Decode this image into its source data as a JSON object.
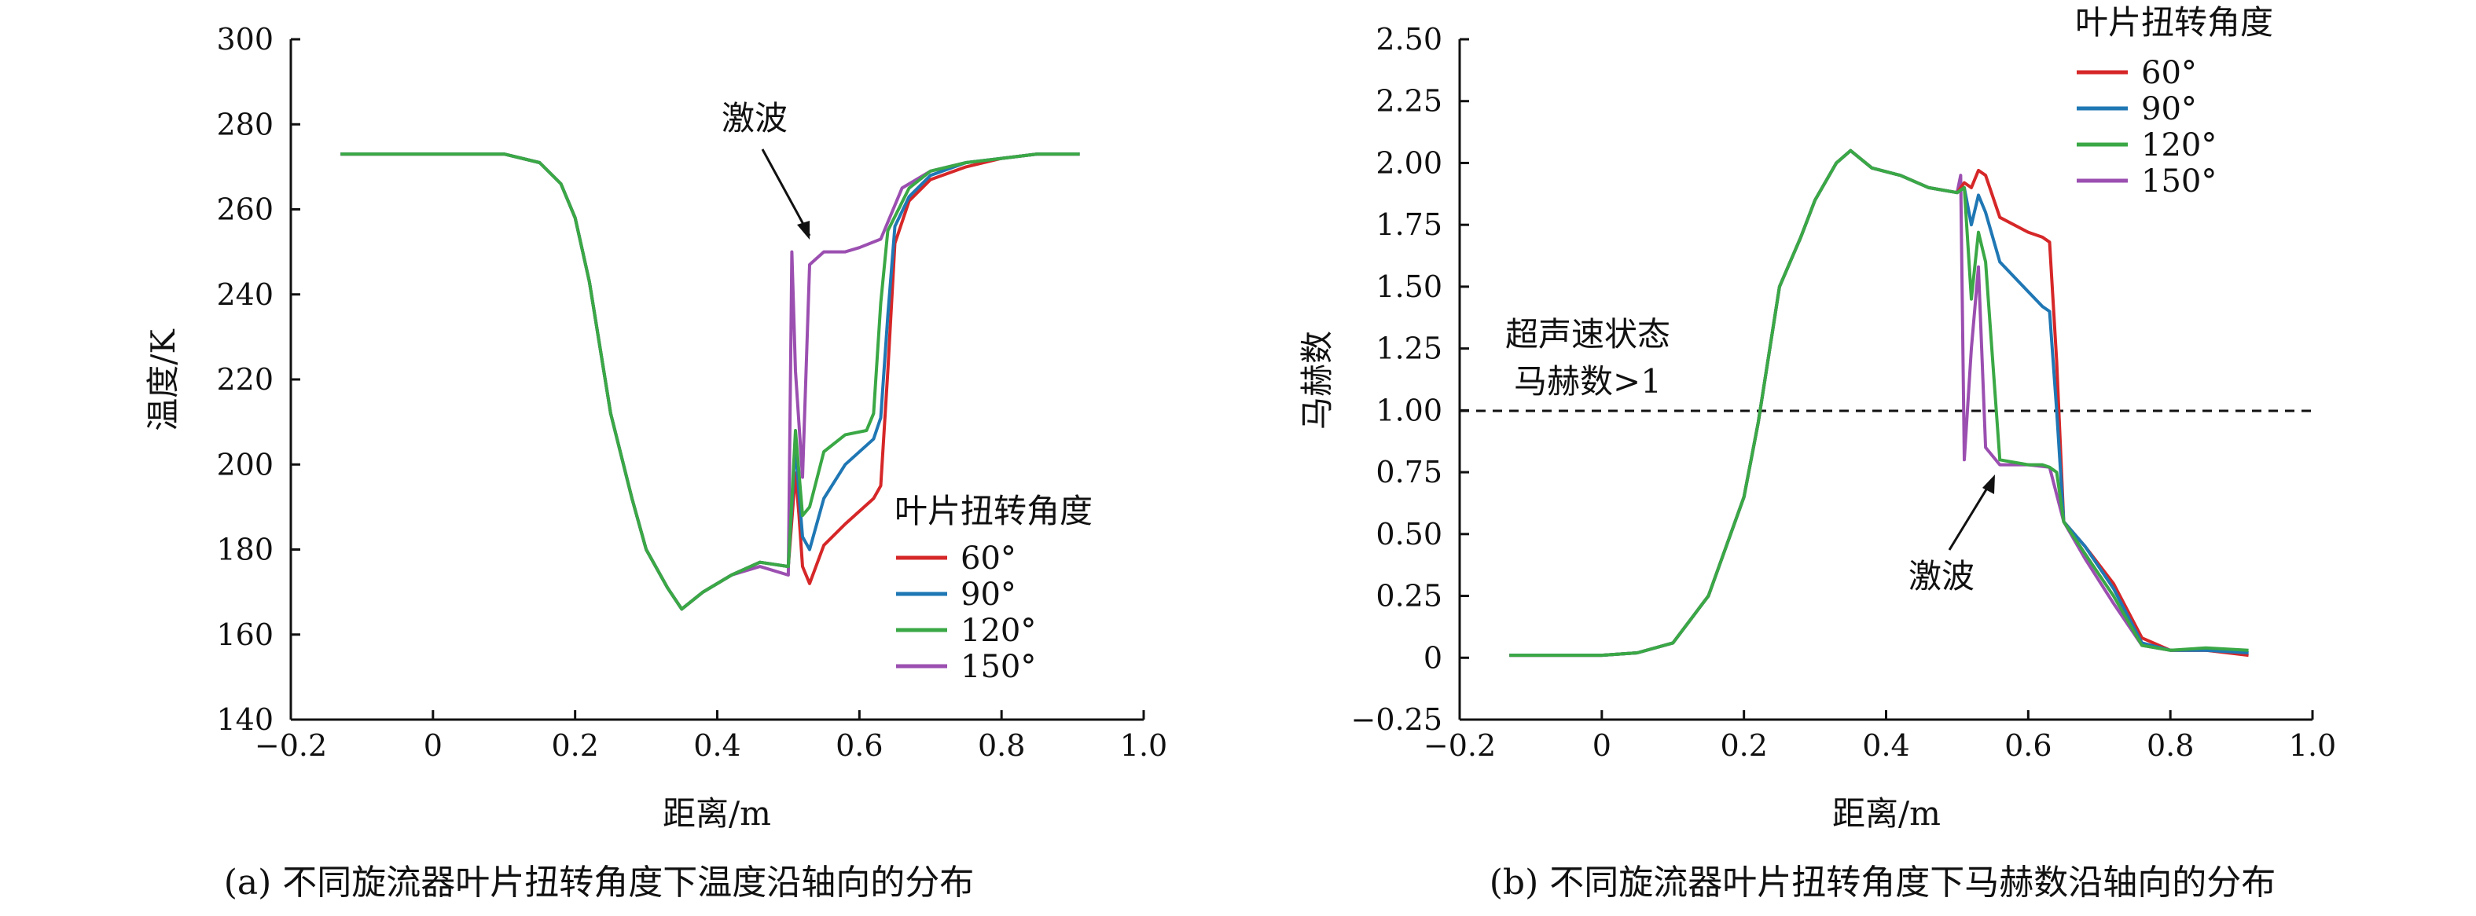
{
  "chart_data": [
    {
      "type": "line",
      "caption": "(a) 不同旋流器叶片扭转角度下温度沿轴向的分布",
      "xlabel": "距离/m",
      "ylabel": "温度/K",
      "xlim": [
        -0.2,
        1.0
      ],
      "ylim": [
        140,
        300
      ],
      "xticks": [
        -0.2,
        0,
        0.2,
        0.4,
        0.6,
        0.8,
        1.0
      ],
      "xtick_labels": [
        "−0.2",
        "0",
        "0.2",
        "0.4",
        "0.6",
        "0.8",
        "1.0"
      ],
      "yticks": [
        140,
        160,
        180,
        200,
        220,
        240,
        260,
        280,
        300
      ],
      "ytick_labels": [
        "140",
        "160",
        "180",
        "200",
        "220",
        "240",
        "260",
        "280",
        "300"
      ],
      "grid": false,
      "legend": {
        "title": "叶片扭转角度",
        "position": "right"
      },
      "annotations": [
        {
          "text": "激波",
          "x": 0.505,
          "y": 250
        }
      ],
      "series": [
        {
          "name": "60°",
          "color": "#d62728",
          "x": [
            -0.13,
            0.1,
            0.15,
            0.18,
            0.2,
            0.22,
            0.25,
            0.28,
            0.3,
            0.33,
            0.35,
            0.38,
            0.42,
            0.46,
            0.5,
            0.51,
            0.515,
            0.52,
            0.53,
            0.55,
            0.58,
            0.62,
            0.63,
            0.64,
            0.65,
            0.67,
            0.7,
            0.75,
            0.8,
            0.85,
            0.91
          ],
          "y": [
            273,
            273,
            271,
            266,
            258,
            243,
            212,
            192,
            180,
            171,
            166,
            170,
            174,
            177,
            176,
            198,
            188,
            176,
            172,
            181,
            186,
            192,
            195,
            222,
            252,
            262,
            267,
            270,
            272,
            273,
            273
          ]
        },
        {
          "name": "90°",
          "color": "#1f77b4",
          "x": [
            -0.13,
            0.1,
            0.15,
            0.18,
            0.2,
            0.22,
            0.25,
            0.28,
            0.3,
            0.33,
            0.35,
            0.38,
            0.42,
            0.46,
            0.5,
            0.51,
            0.515,
            0.52,
            0.53,
            0.55,
            0.58,
            0.62,
            0.63,
            0.64,
            0.65,
            0.67,
            0.7,
            0.75,
            0.8,
            0.85,
            0.91
          ],
          "y": [
            273,
            273,
            271,
            266,
            258,
            243,
            212,
            192,
            180,
            171,
            166,
            170,
            174,
            177,
            176,
            205,
            193,
            183,
            180,
            192,
            200,
            206,
            211,
            235,
            256,
            263,
            268,
            271,
            272,
            273,
            273
          ]
        },
        {
          "name": "120°",
          "color": "#3aa845",
          "x": [
            -0.13,
            0.1,
            0.15,
            0.18,
            0.2,
            0.22,
            0.25,
            0.28,
            0.3,
            0.33,
            0.35,
            0.38,
            0.42,
            0.46,
            0.5,
            0.51,
            0.515,
            0.52,
            0.53,
            0.55,
            0.58,
            0.61,
            0.62,
            0.63,
            0.64,
            0.67,
            0.7,
            0.75,
            0.8,
            0.85,
            0.91
          ],
          "y": [
            273,
            273,
            271,
            266,
            258,
            243,
            212,
            192,
            180,
            171,
            166,
            170,
            174,
            177,
            176,
            208,
            198,
            188,
            190,
            203,
            207,
            208,
            212,
            238,
            255,
            265,
            269,
            271,
            272,
            273,
            273
          ]
        },
        {
          "name": "150°",
          "color": "#9b4fb0",
          "x": [
            -0.13,
            0.1,
            0.15,
            0.18,
            0.2,
            0.22,
            0.25,
            0.28,
            0.3,
            0.33,
            0.35,
            0.38,
            0.42,
            0.46,
            0.5,
            0.505,
            0.51,
            0.52,
            0.53,
            0.55,
            0.58,
            0.6,
            0.63,
            0.66,
            0.7,
            0.75,
            0.8,
            0.85,
            0.91
          ],
          "y": [
            273,
            273,
            271,
            266,
            258,
            243,
            212,
            192,
            180,
            171,
            166,
            170,
            174,
            176,
            174,
            250,
            222,
            197,
            247,
            250,
            250,
            251,
            253,
            265,
            269,
            271,
            272,
            273,
            273
          ]
        }
      ]
    },
    {
      "type": "line",
      "caption": "(b) 不同旋流器叶片扭转角度下马赫数沿轴向的分布",
      "xlabel": "距离/m",
      "ylabel": "马赫数",
      "xlim": [
        -0.2,
        1.0
      ],
      "ylim": [
        -0.25,
        2.5
      ],
      "xticks": [
        -0.2,
        0,
        0.2,
        0.4,
        0.6,
        0.8,
        1.0
      ],
      "xtick_labels": [
        "−0.2",
        "0",
        "0.2",
        "0.4",
        "0.6",
        "0.8",
        "1.0"
      ],
      "yticks": [
        -0.25,
        0,
        0.25,
        0.5,
        0.75,
        1.0,
        1.25,
        1.5,
        1.75,
        2.0,
        2.25,
        2.5
      ],
      "ytick_labels": [
        "−0.25",
        "0",
        "0.25",
        "0.50",
        "0.75",
        "1.00",
        "1.25",
        "1.50",
        "1.75",
        "2.00",
        "2.25",
        "2.50"
      ],
      "grid": false,
      "reference_line": {
        "y": 1.0,
        "style": "dashed"
      },
      "legend": {
        "title": "叶片扭转角度",
        "position": "top-right"
      },
      "annotations": [
        {
          "text": "超声速状态",
          "x": -0.02,
          "y": 1.3
        },
        {
          "text": "马赫数>1",
          "x": -0.02,
          "y": 1.1
        },
        {
          "text": "激波",
          "x": 0.53,
          "y": 0.3
        }
      ],
      "series": [
        {
          "name": "60°",
          "color": "#d62728",
          "x": [
            -0.13,
            0,
            0.05,
            0.1,
            0.15,
            0.2,
            0.22,
            0.25,
            0.28,
            0.3,
            0.33,
            0.35,
            0.38,
            0.42,
            0.46,
            0.5,
            0.51,
            0.52,
            0.53,
            0.54,
            0.56,
            0.6,
            0.62,
            0.63,
            0.64,
            0.65,
            0.68,
            0.72,
            0.76,
            0.8,
            0.85,
            0.91
          ],
          "y": [
            0.01,
            0.01,
            0.02,
            0.06,
            0.25,
            0.65,
            0.95,
            1.5,
            1.7,
            1.85,
            2.0,
            2.05,
            1.98,
            1.95,
            1.9,
            1.88,
            1.92,
            1.9,
            1.97,
            1.95,
            1.78,
            1.72,
            1.7,
            1.68,
            1.2,
            0.55,
            0.45,
            0.3,
            0.08,
            0.03,
            0.03,
            0.01
          ]
        },
        {
          "name": "90°",
          "color": "#1f77b4",
          "x": [
            -0.13,
            0,
            0.05,
            0.1,
            0.15,
            0.2,
            0.22,
            0.25,
            0.28,
            0.3,
            0.33,
            0.35,
            0.38,
            0.42,
            0.46,
            0.5,
            0.51,
            0.52,
            0.53,
            0.54,
            0.56,
            0.6,
            0.62,
            0.63,
            0.64,
            0.65,
            0.68,
            0.72,
            0.76,
            0.8,
            0.85,
            0.91
          ],
          "y": [
            0.01,
            0.01,
            0.02,
            0.06,
            0.25,
            0.65,
            0.95,
            1.5,
            1.7,
            1.85,
            2.0,
            2.05,
            1.98,
            1.95,
            1.9,
            1.88,
            1.9,
            1.75,
            1.87,
            1.8,
            1.6,
            1.48,
            1.42,
            1.4,
            1.0,
            0.55,
            0.45,
            0.28,
            0.06,
            0.03,
            0.03,
            0.02
          ]
        },
        {
          "name": "120°",
          "color": "#3aa845",
          "x": [
            -0.13,
            0,
            0.05,
            0.1,
            0.15,
            0.2,
            0.22,
            0.25,
            0.28,
            0.3,
            0.33,
            0.35,
            0.38,
            0.42,
            0.46,
            0.5,
            0.51,
            0.52,
            0.53,
            0.54,
            0.56,
            0.6,
            0.62,
            0.63,
            0.64,
            0.65,
            0.68,
            0.72,
            0.76,
            0.8,
            0.85,
            0.91
          ],
          "y": [
            0.01,
            0.01,
            0.02,
            0.06,
            0.25,
            0.65,
            0.95,
            1.5,
            1.7,
            1.85,
            2.0,
            2.05,
            1.98,
            1.95,
            1.9,
            1.88,
            1.9,
            1.45,
            1.72,
            1.6,
            0.8,
            0.78,
            0.78,
            0.77,
            0.75,
            0.55,
            0.42,
            0.25,
            0.05,
            0.03,
            0.04,
            0.03
          ]
        },
        {
          "name": "150°",
          "color": "#9b4fb0",
          "x": [
            -0.13,
            0,
            0.05,
            0.1,
            0.15,
            0.2,
            0.22,
            0.25,
            0.28,
            0.3,
            0.33,
            0.35,
            0.38,
            0.42,
            0.46,
            0.5,
            0.505,
            0.51,
            0.52,
            0.53,
            0.54,
            0.56,
            0.6,
            0.63,
            0.65,
            0.68,
            0.72,
            0.76,
            0.8,
            0.85,
            0.91
          ],
          "y": [
            0.01,
            0.01,
            0.02,
            0.06,
            0.25,
            0.65,
            0.95,
            1.5,
            1.7,
            1.85,
            2.0,
            2.05,
            1.98,
            1.95,
            1.9,
            1.88,
            1.95,
            0.8,
            1.25,
            1.58,
            0.85,
            0.78,
            0.78,
            0.77,
            0.55,
            0.4,
            0.22,
            0.05,
            0.03,
            0.03,
            0.02
          ]
        }
      ]
    }
  ]
}
